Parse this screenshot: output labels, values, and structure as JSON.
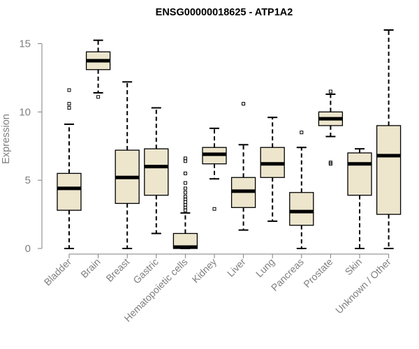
{
  "chart_data": {
    "type": "boxplot",
    "title": "ENSG00000018625 - ATP1A2",
    "xlabel": "",
    "ylabel": "Expression",
    "ylim": [
      0,
      16
    ],
    "yticks": [
      0,
      5,
      10,
      15
    ],
    "box_fill": "#ede6cd",
    "categories": [
      "Bladder",
      "Brain",
      "Breast",
      "Gastric",
      "Hematopoietic cells",
      "Kidney",
      "Liver",
      "Lung",
      "Pancreas",
      "Prostate",
      "Skin",
      "Unknown / Other"
    ],
    "boxes": [
      {
        "min": 0.0,
        "q1": 2.8,
        "median": 4.4,
        "q3": 5.5,
        "max": 9.1,
        "outliers": [
          10.3,
          10.6,
          11.6
        ]
      },
      {
        "min": 11.4,
        "q1": 13.1,
        "median": 13.75,
        "q3": 14.4,
        "max": 15.25,
        "outliers": [
          11.1
        ]
      },
      {
        "min": 0.0,
        "q1": 3.3,
        "median": 5.2,
        "q3": 7.2,
        "max": 12.2,
        "outliers": []
      },
      {
        "min": 1.1,
        "q1": 3.9,
        "median": 6.0,
        "q3": 7.3,
        "max": 10.3,
        "outliers": []
      },
      {
        "min": 0.0,
        "q1": 0.0,
        "median": 0.1,
        "q3": 1.1,
        "max": 2.6,
        "outliers": [
          2.8,
          3.0,
          3.2,
          3.4,
          3.6,
          3.8,
          4.1,
          4.4,
          4.8,
          5.5,
          6.4,
          6.6
        ]
      },
      {
        "min": 5.1,
        "q1": 6.2,
        "median": 6.9,
        "q3": 7.4,
        "max": 8.8,
        "outliers": [
          2.9
        ]
      },
      {
        "min": 1.35,
        "q1": 3.0,
        "median": 4.2,
        "q3": 5.2,
        "max": 7.6,
        "outliers": [
          10.6
        ]
      },
      {
        "min": 2.0,
        "q1": 5.2,
        "median": 6.2,
        "q3": 7.4,
        "max": 9.6,
        "outliers": []
      },
      {
        "min": 0.0,
        "q1": 1.7,
        "median": 2.7,
        "q3": 4.1,
        "max": 7.4,
        "outliers": [
          8.5
        ]
      },
      {
        "min": 8.2,
        "q1": 9.0,
        "median": 9.5,
        "q3": 10.0,
        "max": 11.3,
        "outliers": [
          6.2,
          6.3,
          11.5
        ]
      },
      {
        "min": 0.0,
        "q1": 3.9,
        "median": 6.2,
        "q3": 7.0,
        "max": 7.3,
        "outliers": []
      },
      {
        "min": 0.0,
        "q1": 2.5,
        "median": 6.8,
        "q3": 9.0,
        "max": 16.0,
        "outliers": []
      }
    ]
  }
}
